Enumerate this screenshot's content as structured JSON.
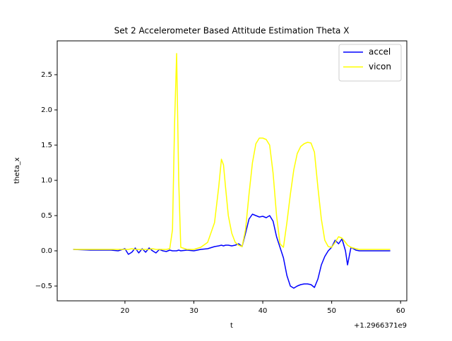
{
  "chart_data": {
    "type": "line",
    "title": "Set 2 Accelerometer Based Attitude Estimation Theta X",
    "x_label": "t",
    "y_label": "theta_x",
    "x_offset_label": "+1.2966371e9",
    "xlim": [
      10.17,
      60.9
    ],
    "ylim": [
      -0.71,
      2.98
    ],
    "xticks": [
      20,
      30,
      40,
      50,
      60
    ],
    "yticks": [
      {
        "value": -0.5,
        "label": "−0.5"
      },
      {
        "value": 0,
        "label": "0.0"
      },
      0.5,
      {
        "value": 1,
        "label": "1.0"
      },
      1.5,
      {
        "value": 2,
        "label": "2.0"
      },
      2.5
    ],
    "grid": false,
    "legend": "upper right",
    "x": [
      12.5,
      15,
      18,
      19,
      20,
      20.5,
      21,
      21.5,
      22,
      22.5,
      23,
      23.5,
      24,
      24.5,
      25,
      25.5,
      26,
      26.5,
      26.9,
      27.2,
      27.5,
      27.8,
      28.1,
      29,
      30,
      31,
      32,
      33,
      33.6,
      34,
      34.3,
      34.6,
      35,
      35.5,
      36,
      36.5,
      37,
      37.5,
      38,
      38.5,
      39,
      39.5,
      40,
      40.5,
      41,
      41.5,
      42,
      42.5,
      43,
      43.5,
      44,
      44.5,
      45,
      45.5,
      46,
      46.5,
      47,
      47.5,
      48,
      48.5,
      49,
      49.5,
      50,
      50.5,
      51,
      51.5,
      52,
      52.3,
      52.8,
      53.5,
      54,
      56,
      58.5
    ],
    "series": [
      {
        "name": "accel",
        "color": "#0000ff",
        "values": [
          0.02,
          0.01,
          0.01,
          0.0,
          0.03,
          -0.05,
          -0.02,
          0.04,
          -0.03,
          0.03,
          -0.02,
          0.04,
          0.0,
          -0.03,
          0.02,
          0.0,
          -0.01,
          0.01,
          0.0,
          0.0,
          0.0,
          0.01,
          0.0,
          0.01,
          0.0,
          0.02,
          0.03,
          0.06,
          0.07,
          0.08,
          0.07,
          0.08,
          0.08,
          0.07,
          0.08,
          0.1,
          0.06,
          0.25,
          0.45,
          0.52,
          0.5,
          0.48,
          0.49,
          0.47,
          0.5,
          0.42,
          0.2,
          0.05,
          -0.1,
          -0.35,
          -0.5,
          -0.53,
          -0.5,
          -0.48,
          -0.47,
          -0.47,
          -0.48,
          -0.52,
          -0.4,
          -0.2,
          -0.08,
          0.0,
          0.05,
          0.15,
          0.1,
          0.17,
          0.0,
          -0.2,
          0.05,
          0.01,
          0.0,
          0.0,
          0.0
        ]
      },
      {
        "name": "vicon",
        "color": "#ffff00",
        "values": [
          0.02,
          0.02,
          0.02,
          0.02,
          0.02,
          0.02,
          0.03,
          0.02,
          0.02,
          0.02,
          0.02,
          0.02,
          0.03,
          0.02,
          0.02,
          0.02,
          0.02,
          0.03,
          0.3,
          1.8,
          2.8,
          1.0,
          0.05,
          0.02,
          0.02,
          0.05,
          0.12,
          0.4,
          0.9,
          1.3,
          1.22,
          0.9,
          0.5,
          0.25,
          0.12,
          0.08,
          0.06,
          0.3,
          0.8,
          1.25,
          1.52,
          1.6,
          1.6,
          1.58,
          1.5,
          1.1,
          0.5,
          0.1,
          0.05,
          0.4,
          0.8,
          1.15,
          1.38,
          1.48,
          1.52,
          1.54,
          1.53,
          1.4,
          0.9,
          0.45,
          0.15,
          0.06,
          0.05,
          0.12,
          0.2,
          0.18,
          0.12,
          0.08,
          0.05,
          0.03,
          0.02,
          0.02,
          0.02
        ]
      }
    ]
  }
}
